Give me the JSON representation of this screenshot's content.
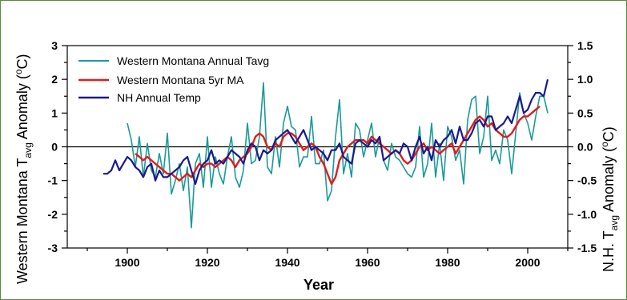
{
  "chart_data": {
    "type": "line",
    "xlabel": "Year",
    "ylabel_left": {
      "main": "Western Montana T",
      "sub": "avg",
      "rest": " Anomaly (",
      "sup": "o",
      "end": "C)"
    },
    "ylabel_right": {
      "main": "N.H. T",
      "sub": "avg",
      "rest": " Anomaly (",
      "sup": "o",
      "end": "C)"
    },
    "xlim": [
      1885,
      2010
    ],
    "ylim_left": [
      -3,
      3
    ],
    "ylim_right": [
      -1.5,
      1.5
    ],
    "x_ticks": [
      "1900",
      "1920",
      "1940",
      "1960",
      "1980",
      "2000"
    ],
    "y_ticks_left": [
      "3",
      "2",
      "1",
      "0",
      "-1",
      "-2",
      "-3"
    ],
    "y_ticks_right": [
      "1.5",
      "1.0",
      "0.5",
      "0.0",
      "-0.5",
      "-1.0",
      "-1.5"
    ],
    "zero_line": true,
    "legend_position": "top-left",
    "series": [
      {
        "name": "Western Montana Annual Tavg",
        "color": "#1a9a9a",
        "axis": "left",
        "x": [
          1900,
          1901,
          1902,
          1903,
          1904,
          1905,
          1906,
          1907,
          1908,
          1909,
          1910,
          1911,
          1912,
          1913,
          1914,
          1915,
          1916,
          1917,
          1918,
          1919,
          1920,
          1921,
          1922,
          1923,
          1924,
          1925,
          1926,
          1927,
          1928,
          1929,
          1930,
          1931,
          1932,
          1933,
          1934,
          1935,
          1936,
          1937,
          1938,
          1939,
          1940,
          1941,
          1942,
          1943,
          1944,
          1945,
          1946,
          1947,
          1948,
          1949,
          1950,
          1951,
          1952,
          1953,
          1954,
          1955,
          1956,
          1957,
          1958,
          1959,
          1960,
          1961,
          1962,
          1963,
          1964,
          1965,
          1966,
          1967,
          1968,
          1969,
          1970,
          1971,
          1972,
          1973,
          1974,
          1975,
          1976,
          1977,
          1978,
          1979,
          1980,
          1981,
          1982,
          1983,
          1984,
          1985,
          1986,
          1987,
          1988,
          1989,
          1990,
          1991,
          1992,
          1993,
          1994,
          1995,
          1996,
          1997,
          1998,
          1999,
          2000,
          2001,
          2002,
          2003,
          2004,
          2005
        ],
        "y": [
          0.7,
          0.2,
          -0.6,
          0.3,
          -0.9,
          0.1,
          -0.7,
          -0.9,
          -0.2,
          -0.8,
          0.4,
          -1.4,
          -1.0,
          -0.5,
          -1.3,
          -0.6,
          -2.4,
          -0.5,
          -0.2,
          -1.2,
          0.3,
          -1.2,
          -0.3,
          -0.8,
          -1.1,
          -0.3,
          0.3,
          -0.9,
          -1.2,
          -0.7,
          0.7,
          -0.5,
          -0.4,
          0.3,
          1.9,
          -0.6,
          -0.8,
          0.3,
          -0.6,
          0.7,
          1.2,
          0.6,
          0.5,
          -0.6,
          -0.3,
          -0.3,
          0.9,
          -0.5,
          -0.5,
          -0.1,
          -1.6,
          -1.3,
          0.3,
          1.4,
          -0.8,
          -0.2,
          -0.9,
          0.7,
          0.5,
          -0.3,
          0.2,
          0.7,
          -0.3,
          0.3,
          -0.4,
          -0.7,
          0.1,
          -0.3,
          -0.4,
          -0.6,
          -0.8,
          -0.9,
          -0.6,
          0.6,
          -0.9,
          -0.5,
          0.7,
          -0.9,
          0.1,
          -1.0,
          0.6,
          0.3,
          -0.4,
          -0.1,
          -1.1,
          0.8,
          1.4,
          1.5,
          -0.2,
          0.3,
          1.5,
          -0.4,
          -0.1,
          -0.5,
          0.5,
          0.2,
          -0.8,
          0.4,
          1.6,
          1.0,
          0.7,
          0.2,
          0.9,
          1.5,
          1.5,
          1.0
        ]
      },
      {
        "name": "Western Montana 5yr MA",
        "color": "#e41a1a",
        "axis": "left",
        "x": [
          1902,
          1903,
          1904,
          1905,
          1906,
          1907,
          1908,
          1909,
          1910,
          1911,
          1912,
          1913,
          1914,
          1915,
          1916,
          1917,
          1918,
          1919,
          1920,
          1921,
          1922,
          1923,
          1924,
          1925,
          1926,
          1927,
          1928,
          1929,
          1930,
          1931,
          1932,
          1933,
          1934,
          1935,
          1936,
          1937,
          1938,
          1939,
          1940,
          1941,
          1942,
          1943,
          1944,
          1945,
          1946,
          1947,
          1948,
          1949,
          1950,
          1951,
          1952,
          1953,
          1954,
          1955,
          1956,
          1957,
          1958,
          1959,
          1960,
          1961,
          1962,
          1963,
          1964,
          1965,
          1966,
          1967,
          1968,
          1969,
          1970,
          1971,
          1972,
          1973,
          1974,
          1975,
          1976,
          1977,
          1978,
          1979,
          1980,
          1981,
          1982,
          1983,
          1984,
          1985,
          1986,
          1987,
          1988,
          1989,
          1990,
          1991,
          1992,
          1993,
          1994,
          1995,
          1996,
          1997,
          1998,
          1999,
          2000,
          2001,
          2002,
          2003
        ],
        "y": [
          -0.2,
          -0.3,
          -0.4,
          -0.3,
          -0.4,
          -0.5,
          -0.6,
          -0.7,
          -0.8,
          -0.8,
          -0.9,
          -1.0,
          -0.9,
          -0.8,
          -0.9,
          -0.7,
          -0.5,
          -0.6,
          -0.5,
          -0.5,
          -0.6,
          -0.5,
          -0.4,
          -0.3,
          -0.4,
          -0.6,
          -0.4,
          -0.3,
          -0.2,
          0.0,
          0.3,
          0.4,
          0.3,
          0.0,
          -0.1,
          0.1,
          0.0,
          0.3,
          0.4,
          0.4,
          0.3,
          0.1,
          -0.1,
          0.0,
          0.1,
          0.0,
          -0.3,
          -0.5,
          -0.8,
          -1.1,
          -0.9,
          -0.4,
          -0.2,
          0.0,
          0.1,
          0.2,
          0.2,
          0.2,
          0.1,
          0.3,
          0.2,
          0.1,
          0.0,
          -0.1,
          -0.2,
          -0.1,
          -0.2,
          -0.4,
          -0.5,
          -0.4,
          -0.2,
          0.0,
          0.1,
          -0.1,
          0.0,
          -0.1,
          -0.2,
          -0.1,
          0.0,
          0.1,
          -0.2,
          0.0,
          0.2,
          0.4,
          0.6,
          0.8,
          0.9,
          0.8,
          0.6,
          0.7,
          0.5,
          0.4,
          0.3,
          0.3,
          0.4,
          0.6,
          0.8,
          0.9,
          0.9,
          1.0,
          1.1,
          1.2
        ]
      },
      {
        "name": "NH Annual Temp",
        "color": "#1a1a8c",
        "axis": "right",
        "x": [
          1894,
          1895,
          1896,
          1897,
          1898,
          1899,
          1900,
          1901,
          1902,
          1903,
          1904,
          1905,
          1906,
          1907,
          1908,
          1909,
          1910,
          1911,
          1912,
          1913,
          1914,
          1915,
          1916,
          1917,
          1918,
          1919,
          1920,
          1921,
          1922,
          1923,
          1924,
          1925,
          1926,
          1927,
          1928,
          1929,
          1930,
          1931,
          1932,
          1933,
          1934,
          1935,
          1936,
          1937,
          1938,
          1939,
          1940,
          1941,
          1942,
          1943,
          1944,
          1945,
          1946,
          1947,
          1948,
          1949,
          1950,
          1951,
          1952,
          1953,
          1954,
          1955,
          1956,
          1957,
          1958,
          1959,
          1960,
          1961,
          1962,
          1963,
          1964,
          1965,
          1966,
          1967,
          1968,
          1969,
          1970,
          1971,
          1972,
          1973,
          1974,
          1975,
          1976,
          1977,
          1978,
          1979,
          1980,
          1981,
          1982,
          1983,
          1984,
          1985,
          1986,
          1987,
          1988,
          1989,
          1990,
          1991,
          1992,
          1993,
          1994,
          1995,
          1996,
          1997,
          1998,
          1999,
          2000,
          2001,
          2002,
          2003,
          2004,
          2005
        ],
        "y": [
          -0.4,
          -0.4,
          -0.35,
          -0.2,
          -0.35,
          -0.25,
          -0.15,
          -0.2,
          -0.3,
          -0.35,
          -0.45,
          -0.3,
          -0.25,
          -0.5,
          -0.35,
          -0.45,
          -0.45,
          -0.4,
          -0.35,
          -0.3,
          -0.2,
          -0.15,
          -0.35,
          -0.55,
          -0.35,
          -0.25,
          -0.2,
          -0.05,
          -0.25,
          -0.2,
          -0.25,
          -0.15,
          -0.05,
          -0.1,
          -0.15,
          -0.25,
          -0.05,
          0.05,
          0.0,
          -0.2,
          -0.05,
          -0.1,
          -0.05,
          0.1,
          0.15,
          0.2,
          0.25,
          0.15,
          0.05,
          0.15,
          0.25,
          0.1,
          -0.05,
          0.0,
          -0.05,
          -0.1,
          -0.2,
          -0.05,
          -0.05,
          0.05,
          -0.15,
          -0.2,
          -0.25,
          0.05,
          0.1,
          0.05,
          0.0,
          0.1,
          0.05,
          0.15,
          -0.2,
          -0.15,
          -0.1,
          -0.05,
          -0.1,
          0.05,
          0.0,
          -0.2,
          0.0,
          0.15,
          -0.1,
          0.0,
          -0.2,
          0.1,
          0.0,
          0.1,
          0.15,
          0.25,
          0.05,
          0.3,
          0.1,
          0.1,
          0.2,
          0.35,
          0.4,
          0.3,
          0.45,
          0.45,
          0.25,
          0.3,
          0.35,
          0.45,
          0.35,
          0.55,
          0.75,
          0.5,
          0.55,
          0.7,
          0.8,
          0.8,
          0.75,
          1.0
        ]
      }
    ]
  }
}
